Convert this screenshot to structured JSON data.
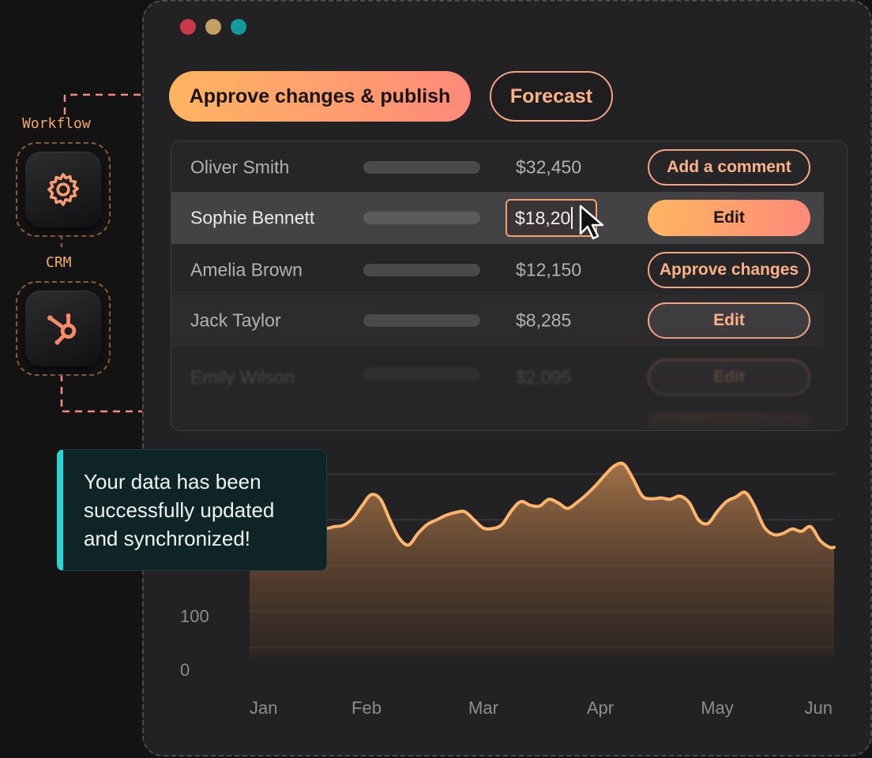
{
  "window": {
    "traffic_lights": [
      {
        "name": "close",
        "color": "#c9394a"
      },
      {
        "name": "minimize",
        "color": "#c2a163"
      },
      {
        "name": "maximize",
        "color": "#109a9b"
      }
    ]
  },
  "toolbar": {
    "primary_label": "Approve changes & publish",
    "secondary_label": "Forecast"
  },
  "integrations": {
    "workflow_label": "Workflow",
    "workflow_icon": "gear-icon",
    "crm_label": "CRM",
    "crm_icon": "hubspot-icon"
  },
  "table": {
    "rows": [
      {
        "name": "Oliver Smith",
        "amount": "$32,450",
        "action": "Add a comment"
      },
      {
        "name": "Sophie Bennett",
        "amount": "$18,20",
        "action": "Edit",
        "selected": true
      },
      {
        "name": "Amelia Brown",
        "amount": "$12,150",
        "action": "Approve changes"
      },
      {
        "name": "Jack Taylor",
        "amount": "$8,285",
        "action": "Edit"
      },
      {
        "name": "Emily Wilson",
        "amount": "$2,095",
        "action": "Edit"
      }
    ]
  },
  "toast": {
    "message": "Your data has been successfully updated and synchronized!",
    "accent": "#2ad4d0"
  },
  "chart_data": {
    "type": "area",
    "title": "",
    "xlabel": "",
    "ylabel": "",
    "x_ticks": [
      "Jan",
      "Feb",
      "Mar",
      "Apr",
      "May",
      "Jun"
    ],
    "y_ticks": [
      0,
      100
    ],
    "ylim": [
      0,
      470
    ],
    "grid": true,
    "color": "#ffb56b",
    "x": [
      0,
      0.08,
      0.16,
      0.24,
      0.32,
      0.4,
      0.48,
      0.56,
      0.64,
      0.72,
      0.8,
      0.88,
      0.96,
      1.04,
      1.12,
      1.2,
      1.28,
      1.36,
      1.44,
      1.52,
      1.6,
      1.68,
      1.76,
      1.84,
      1.92,
      2.0,
      2.08,
      2.16,
      2.24,
      2.32,
      2.4,
      2.48,
      2.56,
      2.64,
      2.72,
      2.8,
      2.88,
      2.96,
      3.04,
      3.12,
      3.2,
      3.28,
      3.36,
      3.44,
      3.52,
      3.6,
      3.68,
      3.76,
      3.84,
      3.92,
      4.0,
      4.08,
      4.16,
      4.24,
      4.32,
      4.4,
      4.48,
      4.56,
      4.64,
      4.72,
      4.8,
      4.88,
      4.96,
      5.0
    ],
    "y": [
      305,
      310,
      318,
      322,
      335,
      350,
      315,
      282,
      280,
      285,
      288,
      302,
      330,
      355,
      345,
      300,
      260,
      245,
      270,
      290,
      300,
      310,
      316,
      318,
      300,
      282,
      281,
      290,
      320,
      340,
      332,
      330,
      345,
      337,
      325,
      338,
      355,
      375,
      398,
      418,
      422,
      390,
      352,
      346,
      348,
      345,
      352,
      338,
      300,
      292,
      318,
      340,
      350,
      360,
      330,
      285,
      268,
      270,
      280,
      275,
      285,
      255,
      240,
      240
    ]
  }
}
